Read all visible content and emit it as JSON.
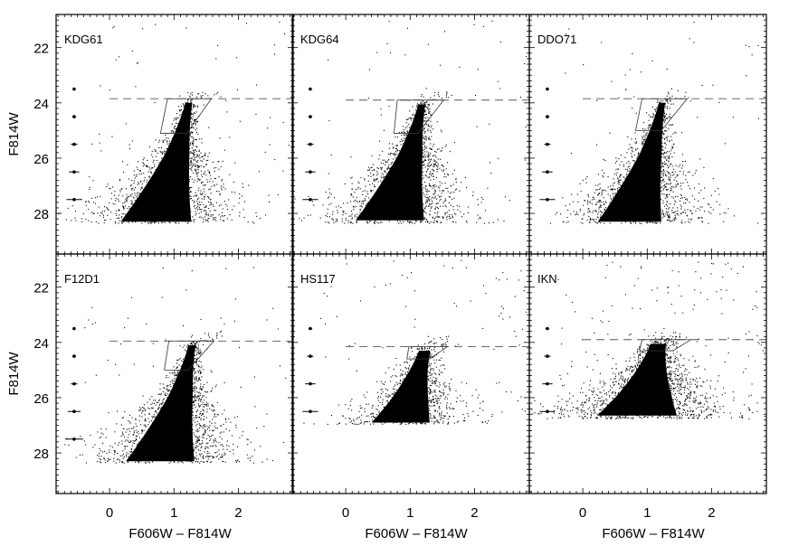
{
  "chart_data": {
    "type": "scatter",
    "title": "",
    "xlabel": "F606W – F814W",
    "ylabel": "F814W",
    "xlim": [
      -0.83,
      2.85
    ],
    "ylim": [
      29.47,
      20.8
    ],
    "xticks": [
      "0",
      "1",
      "2"
    ],
    "yticks": [
      "22",
      "24",
      "26",
      "28"
    ],
    "grid": false,
    "layout": "2 rows x 3 columns, shared axes",
    "panels": [
      {
        "name": "KDG61",
        "trgb": 23.85,
        "faint_limit": 28.35,
        "tip_color": 1.25,
        "ridge_slope": 0.09,
        "spread": 1.0,
        "n_stars": 1700,
        "n_field": 70,
        "box": [
          [
            0.9,
            23.85
          ],
          [
            1.58,
            23.85
          ],
          [
            1.2,
            25.1
          ],
          [
            0.79,
            25.1
          ]
        ],
        "errors": [
          {
            "mag": 23.5,
            "err": 0.02
          },
          {
            "mag": 24.5,
            "err": 0.03
          },
          {
            "mag": 25.5,
            "err": 0.05
          },
          {
            "mag": 26.5,
            "err": 0.08
          },
          {
            "mag": 27.5,
            "err": 0.12
          }
        ]
      },
      {
        "name": "KDG64",
        "trgb": 23.9,
        "faint_limit": 28.35,
        "tip_color": 1.2,
        "ridge_slope": 0.09,
        "spread": 1.0,
        "n_stars": 1700,
        "n_field": 60,
        "box": [
          [
            0.8,
            23.9
          ],
          [
            1.52,
            23.9
          ],
          [
            1.12,
            25.1
          ],
          [
            0.75,
            25.1
          ]
        ],
        "errors": [
          {
            "mag": 23.5,
            "err": 0.02
          },
          {
            "mag": 24.5,
            "err": 0.03
          },
          {
            "mag": 25.5,
            "err": 0.05
          },
          {
            "mag": 26.5,
            "err": 0.08
          },
          {
            "mag": 27.5,
            "err": 0.12
          }
        ]
      },
      {
        "name": "DDO71",
        "trgb": 23.85,
        "faint_limit": 28.35,
        "tip_color": 1.25,
        "ridge_slope": 0.09,
        "spread": 0.9,
        "n_stars": 1600,
        "n_field": 60,
        "box": [
          [
            0.92,
            23.85
          ],
          [
            1.62,
            23.85
          ],
          [
            1.22,
            25.0
          ],
          [
            0.82,
            25.0
          ]
        ],
        "errors": [
          {
            "mag": 23.5,
            "err": 0.02
          },
          {
            "mag": 24.5,
            "err": 0.03
          },
          {
            "mag": 25.5,
            "err": 0.05
          },
          {
            "mag": 26.5,
            "err": 0.08
          },
          {
            "mag": 27.5,
            "err": 0.12
          }
        ]
      },
      {
        "name": "F12D1",
        "trgb": 23.95,
        "faint_limit": 28.35,
        "tip_color": 1.3,
        "ridge_slope": 0.09,
        "spread": 1.0,
        "n_stars": 1800,
        "n_field": 70,
        "box": [
          [
            0.92,
            23.95
          ],
          [
            1.62,
            23.95
          ],
          [
            1.22,
            25.0
          ],
          [
            0.85,
            25.0
          ]
        ],
        "errors": [
          {
            "mag": 23.5,
            "err": 0.02
          },
          {
            "mag": 24.5,
            "err": 0.03
          },
          {
            "mag": 25.5,
            "err": 0.05
          },
          {
            "mag": 26.5,
            "err": 0.1
          },
          {
            "mag": 27.5,
            "err": 0.14
          }
        ]
      },
      {
        "name": "HS117",
        "trgb": 24.15,
        "faint_limit": 26.95,
        "tip_color": 1.25,
        "ridge_slope": 0.12,
        "spread": 1.6,
        "n_stars": 1100,
        "n_field": 90,
        "box": [
          [
            0.98,
            24.15
          ],
          [
            1.58,
            24.15
          ],
          [
            1.3,
            24.6
          ],
          [
            0.95,
            24.6
          ]
        ],
        "errors": [
          {
            "mag": 23.5,
            "err": 0.03
          },
          {
            "mag": 24.5,
            "err": 0.05
          },
          {
            "mag": 25.5,
            "err": 0.08
          },
          {
            "mag": 26.5,
            "err": 0.12
          }
        ]
      },
      {
        "name": "IKN",
        "trgb": 23.9,
        "faint_limit": 26.75,
        "tip_color": 1.2,
        "ridge_slope": 0.1,
        "spread": 2.2,
        "n_stars": 1700,
        "n_field": 160,
        "box": [
          [
            0.92,
            23.9
          ],
          [
            1.68,
            23.9
          ],
          [
            1.4,
            24.3
          ],
          [
            0.88,
            24.3
          ]
        ],
        "errors": [
          {
            "mag": 23.5,
            "err": 0.03
          },
          {
            "mag": 24.5,
            "err": 0.05
          },
          {
            "mag": 25.5,
            "err": 0.08
          },
          {
            "mag": 26.5,
            "err": 0.12
          }
        ]
      }
    ]
  }
}
